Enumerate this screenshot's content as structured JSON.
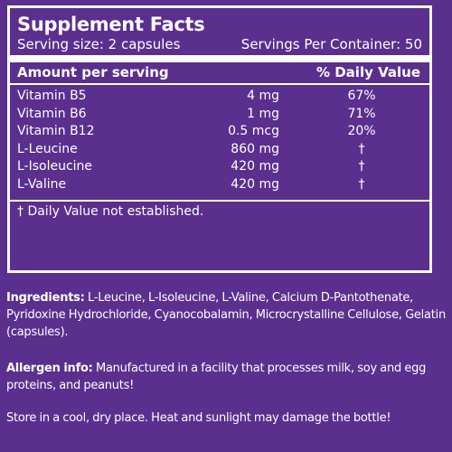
{
  "facts": {
    "title": "Supplement Facts",
    "serving_size": "Serving size: 2 capsules",
    "servings_per_container": "Servings Per Container: 50",
    "header_amount": "Amount per serving",
    "header_dv": "% Daily Value",
    "rows": [
      {
        "name": "Vitamin B5",
        "amount": "4 mg",
        "dv": "67%"
      },
      {
        "name": "Vitamin B6",
        "amount": "1 mg",
        "dv": "71%"
      },
      {
        "name": "Vitamin B12",
        "amount": "0.5 mcg",
        "dv": "20%"
      },
      {
        "name": "L-Leucine",
        "amount": "860 mg",
        "dv": "†"
      },
      {
        "name": "L-Isoleucine",
        "amount": "420 mg",
        "dv": "†"
      },
      {
        "name": "L-Valine",
        "amount": "420 mg",
        "dv": "†"
      }
    ],
    "footnote": "† Daily Value not established."
  },
  "ingredients": {
    "label": "Ingredients:",
    "text": " L-Leucine, L-Isoleucine, L-Valine, Calcium D-Pantothenate, Pyridoxine Hydrochloride, Cyanocobalamin, Microcrystalline Cellulose, Gelatin (capsules)."
  },
  "allergen": {
    "label": "Allergen info:",
    "text": " Manufactured in a facility that processes milk, soy and egg proteins, and peanuts!"
  },
  "storage": {
    "text": "Store in a cool, dry place. Heat and sunlight may damage the bottle!"
  },
  "colors": {
    "background": "#5a2f8e",
    "text": "#ffffff"
  }
}
